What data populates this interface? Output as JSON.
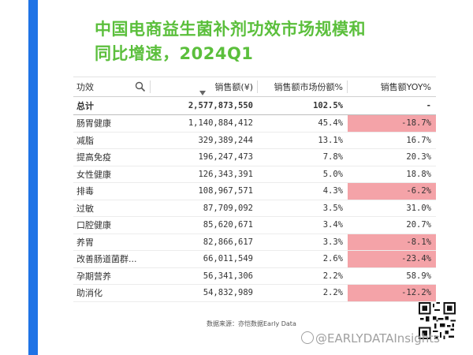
{
  "title": {
    "line1": "中国电商益生菌补剂功效市场规模和",
    "line2": "同比增速，2024Q1"
  },
  "table": {
    "headers": {
      "function": "功效",
      "sales": "销售额(¥)",
      "share": "销售额市场份额%",
      "yoy": "销售额YOY%"
    },
    "total": {
      "name": "总计",
      "sales": "2,577,873,550",
      "share": "102.5%",
      "yoy": "-"
    },
    "rows": [
      {
        "name": "肠胃健康",
        "sales": "1,140,884,412",
        "share": "45.4%",
        "yoy": "-18.7%",
        "neg": true
      },
      {
        "name": "减脂",
        "sales": "329,389,244",
        "share": "13.1%",
        "yoy": "16.7%",
        "neg": false
      },
      {
        "name": "提高免疫",
        "sales": "196,247,473",
        "share": "7.8%",
        "yoy": "20.3%",
        "neg": false
      },
      {
        "name": "女性健康",
        "sales": "126,343,391",
        "share": "5.0%",
        "yoy": "18.8%",
        "neg": false
      },
      {
        "name": "排毒",
        "sales": "108,967,571",
        "share": "4.3%",
        "yoy": "-6.2%",
        "neg": true
      },
      {
        "name": "过敏",
        "sales": "87,709,092",
        "share": "3.5%",
        "yoy": "31.0%",
        "neg": false
      },
      {
        "name": "口腔健康",
        "sales": "85,620,671",
        "share": "3.4%",
        "yoy": "20.7%",
        "neg": false
      },
      {
        "name": "养胃",
        "sales": "82,866,617",
        "share": "3.3%",
        "yoy": "-8.1%",
        "neg": true
      },
      {
        "name": "改善肠道菌群...",
        "sales": "66,011,549",
        "share": "2.6%",
        "yoy": "-23.4%",
        "neg": true
      },
      {
        "name": "孕期营养",
        "sales": "56,341,306",
        "share": "2.2%",
        "yoy": "58.9%",
        "neg": false
      },
      {
        "name": "助消化",
        "sales": "54,832,989",
        "share": "2.2%",
        "yoy": "-12.2%",
        "neg": true
      }
    ]
  },
  "footer": {
    "source": "数据来源：亦恺数据Early Data",
    "watermark": "@EARLYDATAInsights"
  },
  "colors": {
    "accent_bar": "#1f73e6",
    "title": "#5bbf3c",
    "negative_cell": "#f4a3a8"
  }
}
